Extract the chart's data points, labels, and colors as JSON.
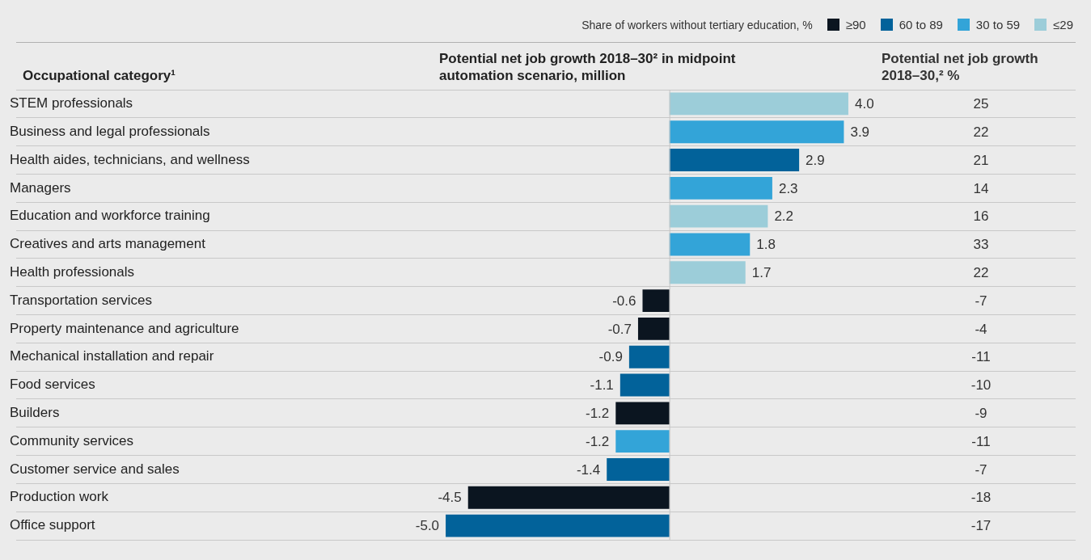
{
  "chart_data": {
    "type": "bar",
    "orientation": "horizontal",
    "stacked": true,
    "ylabel": "Occupational category¹",
    "xlabel": "Potential net job growth 2018–30² in midpoint automation scenario, million",
    "legend_title": "Share of workers without tertiary education, %",
    "legend": "top right",
    "grid": "y",
    "tick_labels": "y",
    "categories": [
      "STEM professionals",
      "Business and legal professionals",
      "Health aides, technicians, and wellness",
      "Managers",
      "Education and workforce training",
      "Creatives and arts management",
      "Health professionals",
      "Transportation services",
      "Property maintenance and agriculture",
      "Mechanical installation and repair",
      "Food services",
      "Builders",
      "Community services",
      "Customer service and sales",
      "Production work",
      "Office support"
    ],
    "series": [
      {
        "name": "≥90",
        "color": "#0b1520",
        "values": [
          null,
          null,
          null,
          null,
          null,
          null,
          null,
          -0.6,
          -0.7,
          null,
          null,
          -1.2,
          null,
          null,
          -4.5,
          null
        ],
        "value_labels": [
          null,
          null,
          null,
          null,
          null,
          null,
          null,
          "-0.6",
          "-0.7",
          null,
          null,
          "-1.2",
          null,
          null,
          "-4.5",
          null
        ]
      },
      {
        "name": "60 to 89",
        "color": "#02629a",
        "values": [
          null,
          null,
          2.9,
          null,
          null,
          null,
          null,
          null,
          null,
          -0.9,
          -1.1,
          null,
          null,
          -1.4,
          null,
          -5.0
        ],
        "value_labels": [
          null,
          null,
          "2.9",
          null,
          null,
          null,
          null,
          null,
          null,
          "-0.9",
          "-1.1",
          null,
          null,
          "-1.4",
          null,
          "-5.0"
        ]
      },
      {
        "name": "30 to 59",
        "color": "#33a4d8",
        "values": [
          null,
          3.9,
          null,
          2.3,
          null,
          1.8,
          null,
          null,
          null,
          null,
          null,
          null,
          -1.2,
          null,
          null,
          null
        ],
        "value_labels": [
          null,
          "3.9",
          null,
          "2.3",
          null,
          "1.8",
          null,
          null,
          null,
          null,
          null,
          null,
          "-1.2",
          null,
          null,
          null
        ]
      },
      {
        "name": "≤29",
        "color": "#9ccdd9",
        "values": [
          4.0,
          null,
          null,
          null,
          2.2,
          null,
          1.7,
          null,
          null,
          null,
          null,
          null,
          null,
          null,
          null,
          null
        ],
        "value_labels": [
          "4.0",
          null,
          null,
          null,
          "2.2",
          null,
          "1.7",
          null,
          null,
          null,
          null,
          null,
          null,
          null,
          null,
          null
        ]
      }
    ],
    "annotations": [
      "Potential net job growth 2018–30,² %",
      "25",
      "22",
      "21",
      "14",
      "16",
      "33",
      "22",
      "-7",
      "-4",
      "-11",
      "-10",
      "-9",
      "-11",
      "-7",
      "-18",
      "-17"
    ]
  }
}
